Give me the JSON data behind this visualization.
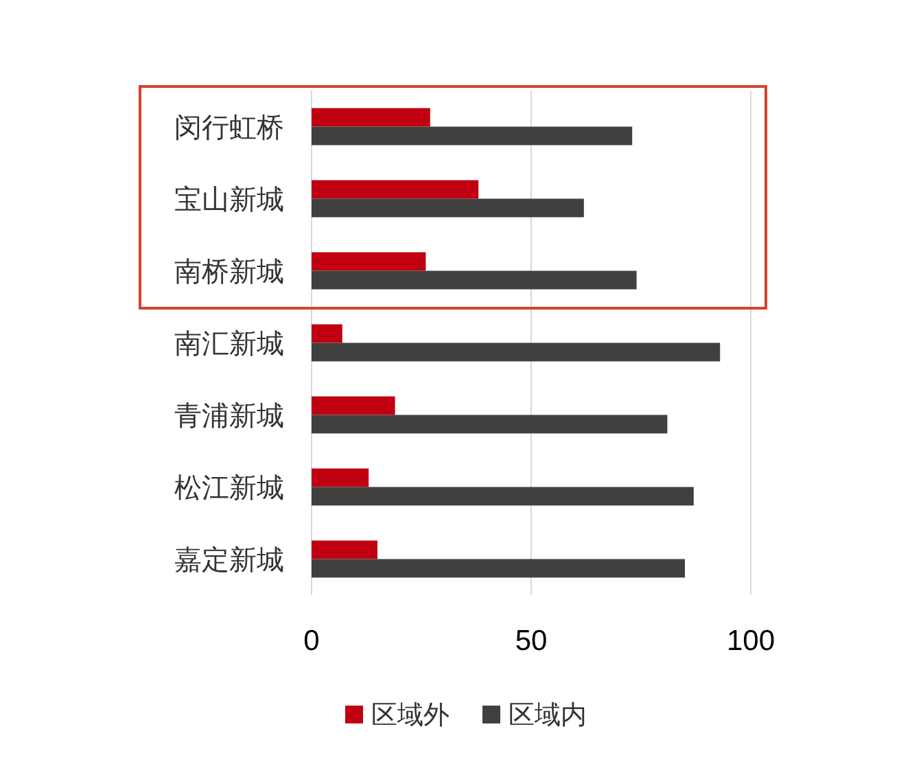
{
  "chart_data": {
    "type": "bar",
    "orientation": "horizontal",
    "categories": [
      "闵行虹桥",
      "宝山新城",
      "南桥新城",
      "南汇新城",
      "青浦新城",
      "松江新城",
      "嘉定新城"
    ],
    "series": [
      {
        "name": "区域外",
        "color": "#c00010",
        "values": [
          27,
          38,
          26,
          7,
          19,
          13,
          15
        ]
      },
      {
        "name": "区域内",
        "color": "#404040",
        "values": [
          73,
          62,
          74,
          93,
          81,
          87,
          85
        ]
      }
    ],
    "xlim": [
      0,
      100
    ],
    "xticks": [
      0,
      50,
      100
    ],
    "grid": "x",
    "legend": "bottom"
  }
}
